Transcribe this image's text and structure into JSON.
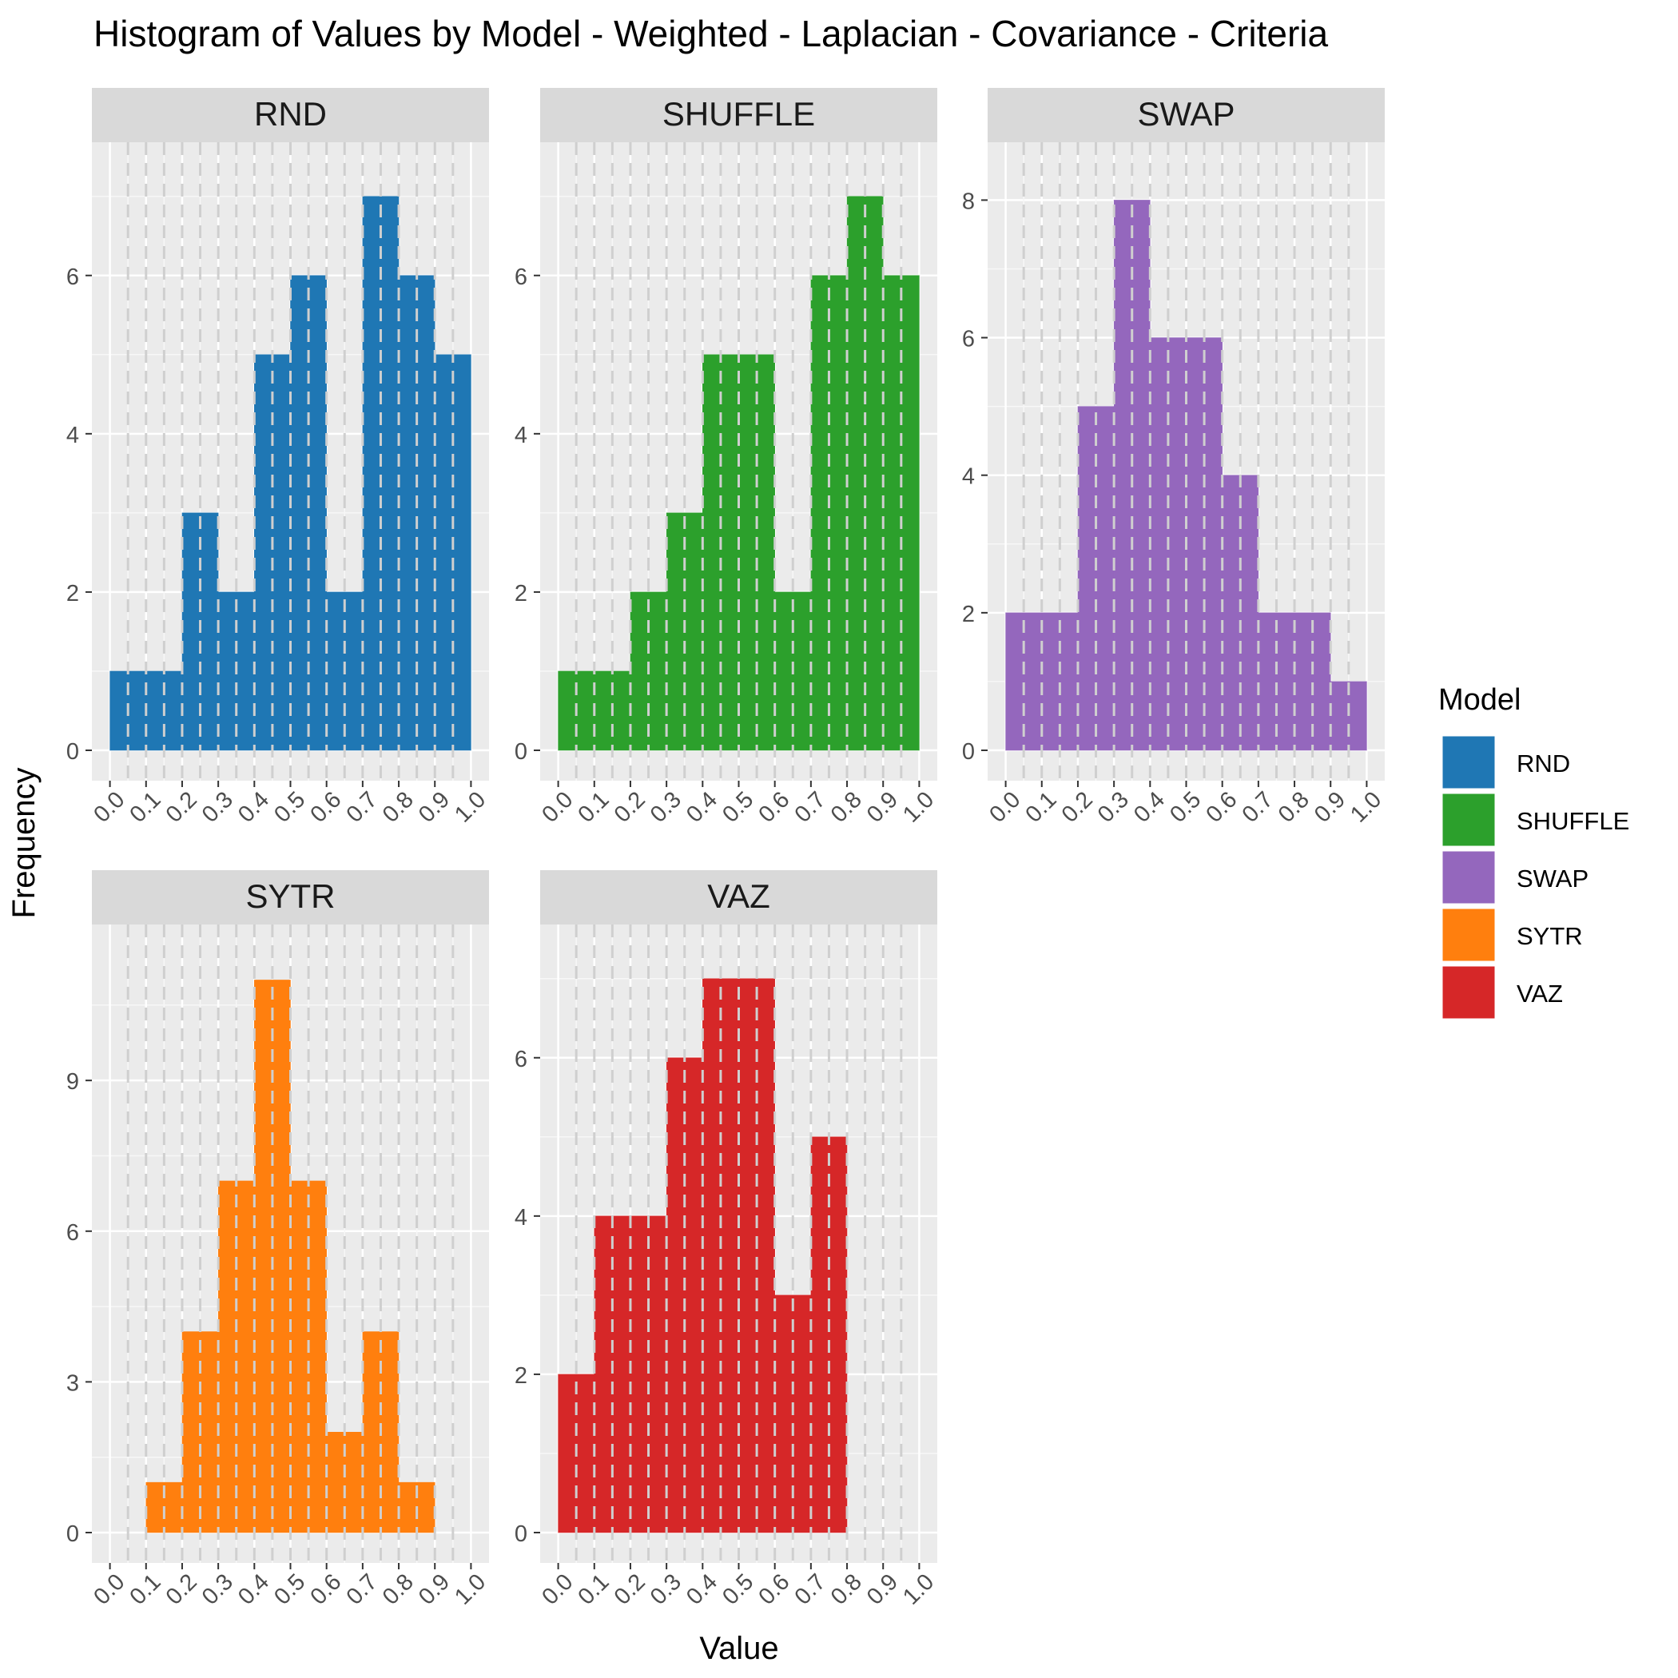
{
  "chart_data": {
    "type": "histogram",
    "title": "Histogram of Values by Model - Weighted - Laplacian - Covariance - Criteria",
    "xlabel": "Value",
    "ylabel": "Frequency",
    "x_ticks": [
      "0.0",
      "0.1",
      "0.2",
      "0.3",
      "0.4",
      "0.5",
      "0.6",
      "0.7",
      "0.8",
      "0.9",
      "1.0"
    ],
    "bin_edges": [
      0.0,
      0.1,
      0.2,
      0.3,
      0.4,
      0.5,
      0.6,
      0.7,
      0.8,
      0.9,
      1.0
    ],
    "grid": true,
    "vlines": [
      0.05,
      0.1,
      0.15,
      0.2,
      0.25,
      0.3,
      0.35,
      0.4,
      0.45,
      0.5,
      0.55,
      0.6,
      0.65,
      0.7,
      0.75,
      0.8,
      0.85,
      0.9,
      0.95
    ],
    "legend_title": "Model",
    "legend_position": "right",
    "panels": [
      {
        "name": "RND",
        "color": "#1f77b4",
        "counts": [
          1,
          1,
          3,
          2,
          5,
          6,
          2,
          7,
          6,
          5
        ],
        "ylim": [
          0,
          7.3
        ],
        "y_ticks": [
          0,
          2,
          4,
          6
        ]
      },
      {
        "name": "SHUFFLE",
        "color": "#2ca02c",
        "counts": [
          1,
          1,
          2,
          3,
          5,
          5,
          2,
          6,
          7,
          6
        ],
        "ylim": [
          0,
          7.3
        ],
        "y_ticks": [
          0,
          2,
          4,
          6
        ]
      },
      {
        "name": "SWAP",
        "color": "#9467bd",
        "counts": [
          2,
          2,
          5,
          8,
          6,
          6,
          4,
          2,
          2,
          1
        ],
        "ylim": [
          0,
          8.4
        ],
        "y_ticks": [
          0,
          2,
          4,
          6,
          8
        ]
      },
      {
        "name": "SYTR",
        "color": "#ff7f0e",
        "counts": [
          0,
          1,
          4,
          7,
          11,
          7,
          2,
          4,
          1,
          0
        ],
        "ylim": [
          0,
          11.5
        ],
        "y_ticks": [
          0,
          3,
          6,
          9
        ]
      },
      {
        "name": "VAZ",
        "color": "#d62728",
        "counts": [
          2,
          4,
          4,
          6,
          7,
          7,
          3,
          5,
          0,
          0
        ],
        "ylim": [
          0,
          7.3
        ],
        "y_ticks": [
          0,
          2,
          4,
          6
        ]
      }
    ],
    "legend": [
      {
        "label": "RND",
        "color": "#1f77b4"
      },
      {
        "label": "SHUFFLE",
        "color": "#2ca02c"
      },
      {
        "label": "SWAP",
        "color": "#9467bd"
      },
      {
        "label": "SYTR",
        "color": "#ff7f0e"
      },
      {
        "label": "VAZ",
        "color": "#d62728"
      }
    ]
  }
}
